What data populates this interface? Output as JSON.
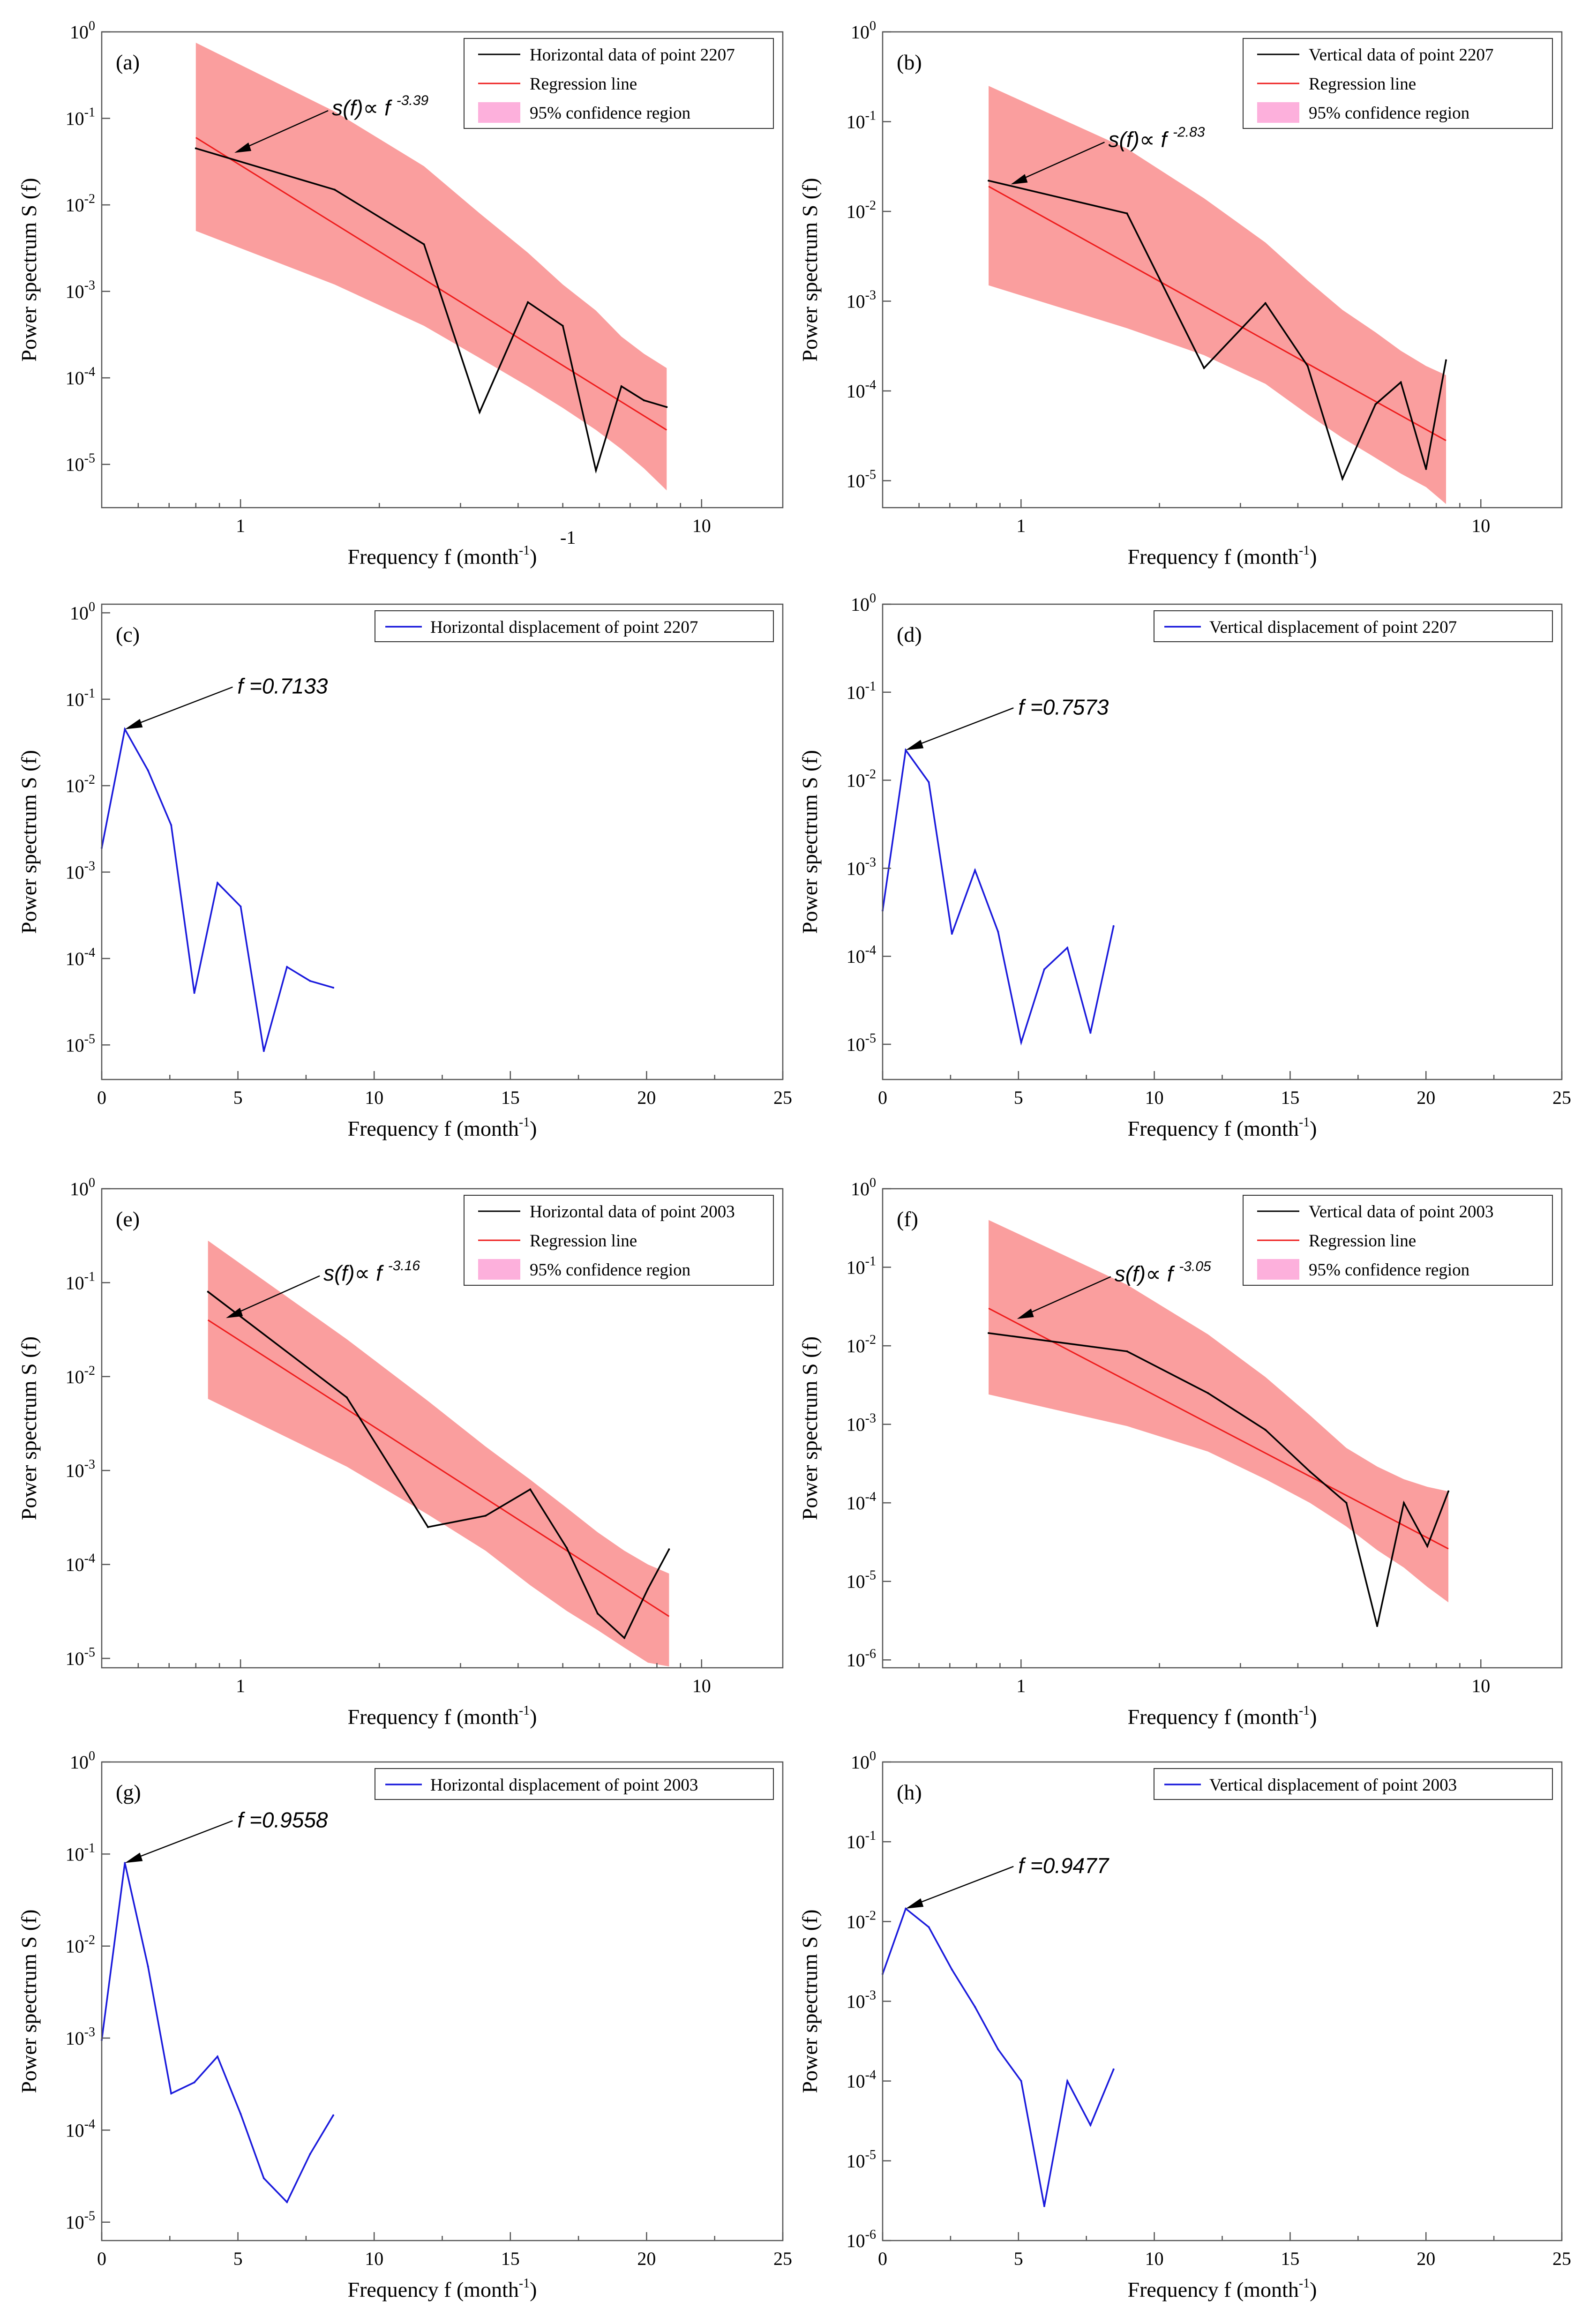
{
  "figure": {
    "axis_text": {
      "xlabel_main": "Frequency f (month",
      "xlabel_sup": "-1",
      "xlabel_close": ")",
      "ylabel": "Power spectrum S (f)",
      "stray_label": "-1"
    },
    "colors": {
      "data_line": "#000000",
      "regression": "#ee1c1c",
      "confidence_fill": "#fa9e9e",
      "confidence_legend": "#fdb0dc",
      "displacement": "#1a1adc"
    }
  },
  "chart_data": [
    {
      "panel": "(a)",
      "type": "line",
      "xscale": "log",
      "yscale": "log",
      "xlim": [
        0.5,
        15
      ],
      "ylim_exp": [
        -5.5,
        0
      ],
      "xticks": [
        1,
        10
      ],
      "yticks_exp": [
        -5,
        -4,
        -3,
        -2,
        -1,
        0
      ],
      "xlabel": "Frequency f (month-1)",
      "ylabel": "Power spectrum S (f)",
      "legend": [
        "Horizontal data of point 2207",
        "Regression line",
        "95% confidence region"
      ],
      "series": [
        {
          "name": "Horizontal data of point 2207",
          "color": "#000000",
          "x": [
            0.8,
            1.6,
            2.5,
            3.3,
            4.2,
            5.0,
            5.9,
            6.7,
            7.5,
            8.4
          ],
          "y": [
            0.045,
            0.015,
            0.0035,
            4e-05,
            0.00075,
            0.0004,
            8.5e-06,
            8e-05,
            5.5e-05,
            4.6e-05
          ]
        }
      ],
      "regression": {
        "label": "s(f)∝ f",
        "exponent": "-3.39",
        "x": [
          0.8,
          8.4
        ],
        "y": [
          0.06,
          2.5e-05
        ]
      },
      "confidence": {
        "x": [
          0.8,
          1.6,
          2.5,
          3.3,
          4.2,
          5.0,
          5.9,
          6.7,
          7.5,
          8.4
        ],
        "upper": [
          0.75,
          0.12,
          0.028,
          0.008,
          0.0028,
          0.0012,
          0.0006,
          0.0003,
          0.00019,
          0.00013
        ],
        "lower": [
          0.005,
          0.0012,
          0.0004,
          0.00017,
          8e-05,
          4.5e-05,
          2.5e-05,
          1.5e-05,
          9e-06,
          5e-06
        ]
      },
      "annotation": {
        "x": 0.97,
        "y": 0.04
      }
    },
    {
      "panel": "(b)",
      "type": "line",
      "xscale": "log",
      "yscale": "log",
      "xlim": [
        0.5,
        15
      ],
      "ylim_exp": [
        -5.3,
        0
      ],
      "xticks": [
        1,
        10
      ],
      "yticks_exp": [
        -5,
        -4,
        -3,
        -2,
        -1,
        0
      ],
      "xlabel": "Frequency f (month-1)",
      "ylabel": "Power spectrum S (f)",
      "legend": [
        "Vertical data of point 2207",
        "Regression line",
        "95% confidence region"
      ],
      "series": [
        {
          "name": "Vertical data of point 2207",
          "color": "#000000",
          "x": [
            0.85,
            1.7,
            2.5,
            3.4,
            4.2,
            5.0,
            5.9,
            6.7,
            7.6,
            8.4
          ],
          "y": [
            0.022,
            0.0095,
            0.00018,
            0.00095,
            0.00019,
            1.05e-05,
            7.1e-05,
            0.000125,
            1.35e-05,
            0.00022
          ]
        }
      ],
      "regression": {
        "label": "s(f)∝ f",
        "exponent": "-2.83",
        "x": [
          0.85,
          8.4
        ],
        "y": [
          0.019,
          2.8e-05
        ]
      },
      "confidence": {
        "x": [
          0.85,
          1.7,
          2.5,
          3.4,
          4.2,
          5.0,
          5.9,
          6.7,
          7.6,
          8.4
        ],
        "upper": [
          0.25,
          0.05,
          0.014,
          0.0045,
          0.0017,
          0.0008,
          0.00045,
          0.00028,
          0.00019,
          0.00015
        ],
        "lower": [
          0.0015,
          0.0005,
          0.00025,
          0.00012,
          5.5e-05,
          3e-05,
          1.8e-05,
          1.2e-05,
          8.5e-06,
          5.5e-06
        ]
      },
      "annotation": {
        "x": 0.95,
        "y": 0.02
      }
    },
    {
      "panel": "(c)",
      "type": "line",
      "xscale": "linear",
      "yscale": "log",
      "xlim": [
        0,
        25
      ],
      "ylim_exp": [
        -5.4,
        0.1
      ],
      "xticks": [
        0,
        5,
        10,
        15,
        20,
        25
      ],
      "yticks_exp": [
        -5,
        -4,
        -3,
        -2,
        -1,
        0
      ],
      "xlabel": "Frequency f (month-1)",
      "ylabel": "Power spectrum S (f)",
      "legend": [
        "Horizontal displacement of point 2207"
      ],
      "series": [
        {
          "name": "Horizontal displacement of point 2207",
          "color": "#1a1adc",
          "x": [
            0,
            0.85,
            1.7,
            2.55,
            3.4,
            4.25,
            5.1,
            5.95,
            6.8,
            7.65,
            8.5
          ],
          "y": [
            0.0019,
            0.045,
            0.015,
            0.0035,
            4e-05,
            0.00075,
            0.0004,
            8.5e-06,
            8e-05,
            5.5e-05,
            4.6e-05
          ]
        }
      ],
      "annotation": {
        "label": "f =0.7133",
        "x": 0.85,
        "y": 0.045
      }
    },
    {
      "panel": "(d)",
      "type": "line",
      "xscale": "linear",
      "yscale": "log",
      "xlim": [
        0,
        25
      ],
      "ylim_exp": [
        -5.4,
        0
      ],
      "xticks": [
        0,
        5,
        10,
        15,
        20,
        25
      ],
      "yticks_exp": [
        -5,
        -4,
        -3,
        -2,
        -1,
        0
      ],
      "xlabel": "Frequency f (month-1)",
      "ylabel": "Power spectrum S (f)",
      "legend": [
        "Vertical displacement of point 2207"
      ],
      "series": [
        {
          "name": "Vertical displacement of point 2207",
          "color": "#1a1adc",
          "x": [
            0,
            0.85,
            1.7,
            2.55,
            3.4,
            4.25,
            5.1,
            5.95,
            6.8,
            7.65,
            8.5
          ],
          "y": [
            0.00033,
            0.022,
            0.0095,
            0.00018,
            0.00095,
            0.00019,
            1.05e-05,
            7.1e-05,
            0.000125,
            1.35e-05,
            0.00022
          ]
        }
      ],
      "annotation": {
        "label": "f =0.7573",
        "x": 0.85,
        "y": 0.022
      }
    },
    {
      "panel": "(e)",
      "type": "line",
      "xscale": "log",
      "yscale": "log",
      "xlim": [
        0.5,
        15
      ],
      "ylim_exp": [
        -5.1,
        0
      ],
      "xticks": [
        1,
        10
      ],
      "yticks_exp": [
        -5,
        -4,
        -3,
        -2,
        -1,
        0
      ],
      "xlabel": "Frequency f (month-1)",
      "ylabel": "Power spectrum S (f)",
      "legend": [
        "Horizontal data of point 2003",
        "Regression line",
        "95% confidence region"
      ],
      "series": [
        {
          "name": "Horizontal data of point 2003",
          "color": "#000000",
          "x": [
            0.85,
            1.7,
            2.55,
            3.4,
            4.25,
            5.1,
            5.95,
            6.8,
            7.65,
            8.5
          ],
          "y": [
            0.08,
            0.006,
            0.00025,
            0.00033,
            0.00063,
            0.00015,
            3e-05,
            1.65e-05,
            5.5e-05,
            0.000145
          ]
        }
      ],
      "regression": {
        "label": "s(f)∝ f",
        "exponent": "-3.16",
        "x": [
          0.85,
          8.5
        ],
        "y": [
          0.04,
          2.8e-05
        ]
      },
      "confidence": {
        "x": [
          0.85,
          1.7,
          2.55,
          3.4,
          4.25,
          5.1,
          5.95,
          6.8,
          7.65,
          8.5
        ],
        "upper": [
          0.28,
          0.025,
          0.0055,
          0.0018,
          0.0008,
          0.0004,
          0.00022,
          0.00014,
          0.0001,
          8e-05
        ],
        "lower": [
          0.0058,
          0.0011,
          0.00034,
          0.00014,
          6e-05,
          3.2e-05,
          2e-05,
          1.3e-05,
          9e-06,
          8.2e-06
        ]
      },
      "annotation": {
        "x": 0.93,
        "y": 0.042
      }
    },
    {
      "panel": "(f)",
      "type": "line",
      "xscale": "log",
      "yscale": "log",
      "xlim": [
        0.5,
        15
      ],
      "ylim_exp": [
        -6.1,
        0
      ],
      "xticks": [
        1,
        10
      ],
      "yticks_exp": [
        -6,
        -5,
        -4,
        -3,
        -2,
        -1,
        0
      ],
      "xlabel": "Frequency f (month-1)",
      "ylabel": "Power spectrum S (f)",
      "legend": [
        "Vertical data of point 2003",
        "Regression line",
        "95% confidence region"
      ],
      "series": [
        {
          "name": "Vertical data of point 2003",
          "color": "#000000",
          "x": [
            0.85,
            1.7,
            2.55,
            3.4,
            4.25,
            5.1,
            5.95,
            6.8,
            7.65,
            8.5
          ],
          "y": [
            0.0145,
            0.0085,
            0.0025,
            0.00085,
            0.00025,
            0.0001,
            2.7e-06,
            0.0001,
            2.8e-05,
            0.00014
          ]
        }
      ],
      "regression": {
        "label": "s(f)∝ f",
        "exponent": "-3.05",
        "x": [
          0.85,
          8.5
        ],
        "y": [
          0.03,
          2.6e-05
        ]
      },
      "confidence": {
        "x": [
          0.85,
          1.7,
          2.55,
          3.4,
          4.25,
          5.1,
          5.95,
          6.8,
          7.65,
          8.5
        ],
        "upper": [
          0.4,
          0.06,
          0.014,
          0.004,
          0.0013,
          0.0005,
          0.00029,
          0.0002,
          0.00016,
          0.00014
        ],
        "lower": [
          0.0024,
          0.00095,
          0.00045,
          0.0002,
          0.0001,
          5e-05,
          2.5e-05,
          1.5e-05,
          8.5e-06,
          5.4e-06
        ]
      },
      "annotation": {
        "x": 0.98,
        "y": 0.022
      }
    },
    {
      "panel": "(g)",
      "type": "line",
      "xscale": "linear",
      "yscale": "log",
      "xlim": [
        0,
        25
      ],
      "ylim_exp": [
        -5.2,
        0
      ],
      "xticks": [
        0,
        5,
        10,
        15,
        20,
        25
      ],
      "yticks_exp": [
        -5,
        -4,
        -3,
        -2,
        -1,
        0
      ],
      "xlabel": "Frequency f (month-1)",
      "ylabel": "Power spectrum S (f)",
      "legend": [
        "Horizontal displacement of point 2003"
      ],
      "series": [
        {
          "name": "Horizontal displacement of point 2003",
          "color": "#1a1adc",
          "x": [
            0,
            0.85,
            1.7,
            2.55,
            3.4,
            4.25,
            5.1,
            5.95,
            6.8,
            7.65,
            8.5
          ],
          "y": [
            0.00095,
            0.08,
            0.006,
            0.00025,
            0.00033,
            0.00063,
            0.00015,
            3e-05,
            1.65e-05,
            5.5e-05,
            0.000145
          ]
        }
      ],
      "annotation": {
        "label": "f =0.9558",
        "x": 0.85,
        "y": 0.08
      }
    },
    {
      "panel": "(h)",
      "type": "line",
      "xscale": "linear",
      "yscale": "log",
      "xlim": [
        0,
        25
      ],
      "ylim_exp": [
        -6,
        0
      ],
      "xticks": [
        0,
        5,
        10,
        15,
        20,
        25
      ],
      "yticks_exp": [
        -6,
        -5,
        -4,
        -3,
        -2,
        -1,
        0
      ],
      "xlabel": "Frequency f (month-1)",
      "ylabel": "Power spectrum S (f)",
      "legend": [
        "Vertical displacement of point 2003"
      ],
      "series": [
        {
          "name": "Vertical displacement of point 2003",
          "color": "#1a1adc",
          "x": [
            0,
            0.85,
            1.7,
            2.55,
            3.4,
            4.25,
            5.1,
            5.95,
            6.8,
            7.65,
            8.5
          ],
          "y": [
            0.0022,
            0.0145,
            0.0085,
            0.0025,
            0.00085,
            0.00025,
            0.0001,
            2.7e-06,
            0.0001,
            2.8e-05,
            0.00014
          ]
        }
      ],
      "annotation": {
        "label": "f =0.9477",
        "x": 0.85,
        "y": 0.0145
      }
    }
  ]
}
